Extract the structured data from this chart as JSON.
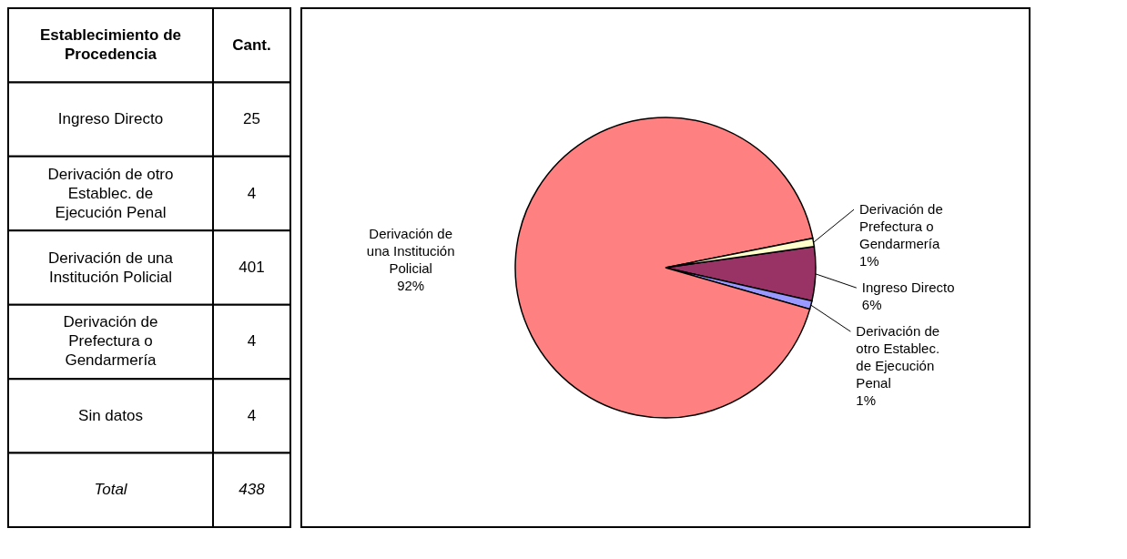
{
  "chart_data": [
    {
      "type": "other",
      "xlabel": "Establecimiento de Procedencia",
      "ylabel": "Cant.",
      "categories": [
        "Ingreso Directo",
        "Derivación de otro Establec. de Ejecución Penal",
        "Derivación de una Institución Policial",
        "Derivación de Prefectura o Gendarmería",
        "Sin datos",
        "Total"
      ],
      "values": [
        25,
        4,
        401,
        4,
        4,
        438
      ],
      "data_labels": true
    },
    {
      "type": "pie",
      "categories": [
        "Ingreso Directo",
        "Derivación de otro Establec. de Ejecución Penal",
        "Derivación de una Institución Policial",
        "Derivación de Prefectura o Gendarmería"
      ],
      "values": [
        5.8,
        0.9,
        92.4,
        0.9
      ],
      "value_labels": [
        "6%",
        "1%",
        "92%",
        "1%"
      ],
      "colors": [
        "#993366",
        "#9999ff",
        "#ff8080",
        "#ffffcc"
      ],
      "legend": false
    }
  ]
}
